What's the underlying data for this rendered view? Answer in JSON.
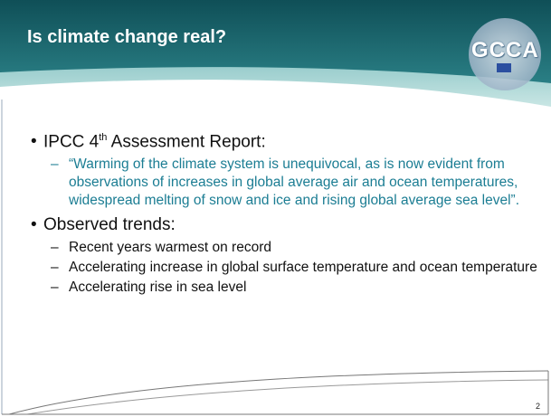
{
  "header": {
    "title": "Is climate change real?",
    "logo": "GCCA"
  },
  "bullets": [
    {
      "text": [
        "IPCC 4",
        "th",
        " Assessment Report:"
      ],
      "sub": [
        "“Warming of the climate system is unequivocal, as is now evident from observations of increases in global average air and ocean temperatures, widespread melting of snow and ice and rising global average sea level”."
      ]
    },
    {
      "text": [
        "Observed trends:"
      ],
      "sub": [
        "Recent years warmest on record",
        "Accelerating increase in global surface temperature and ocean temperature",
        "Accelerating rise in sea level"
      ]
    }
  ],
  "page_number": "2"
}
